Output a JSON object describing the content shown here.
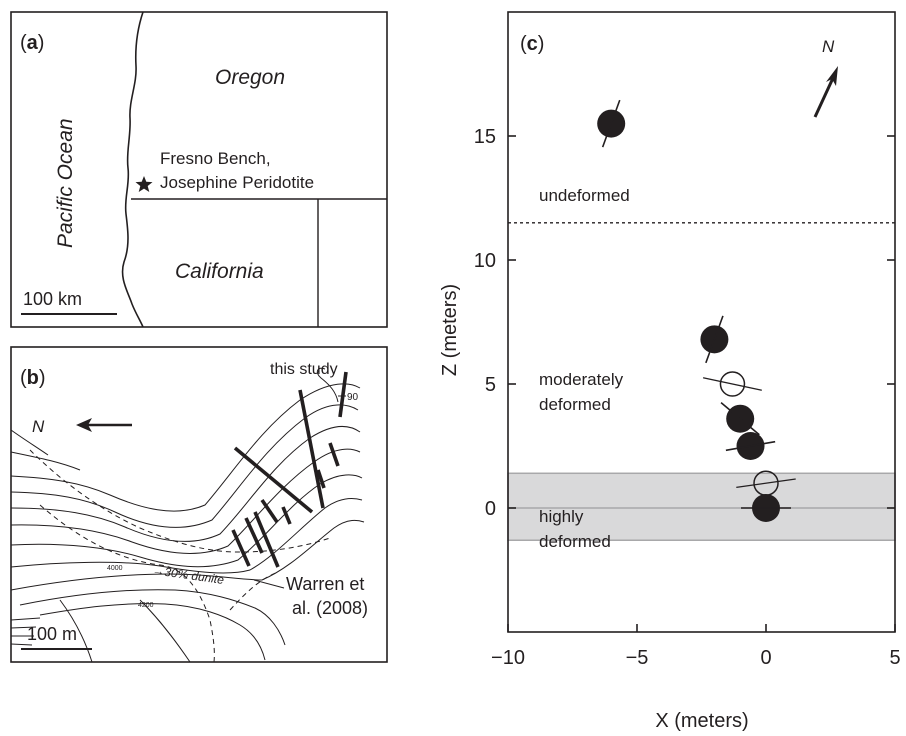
{
  "panel_a": {
    "label": "(a)",
    "label_letter": "a",
    "oregon": "Oregon",
    "california": "California",
    "ocean": "Pacific Ocean",
    "site_line1": "Fresno Bench,",
    "site_line2": "Josephine Peridotite",
    "scale": "100 km"
  },
  "panel_b": {
    "label": "(b)",
    "label_letter": "b",
    "this_study": "this study",
    "dip": "90",
    "dunite": "30% dunite",
    "contour_4000": "4000",
    "contour_4200": "4200",
    "ref_line1": "Warren et",
    "ref_line2": "al. (2008)",
    "scale": "100 m",
    "north_symbol": "N"
  },
  "panel_c": {
    "label": "(c)",
    "label_letter": "c",
    "north_symbol": "N",
    "undeformed": "undeformed",
    "moderately_line1": "moderately",
    "moderately_line2": "deformed",
    "highly_line1": "highly",
    "highly_line2": "deformed"
  },
  "chart_data": {
    "type": "scatter",
    "xlabel": "X (meters)",
    "ylabel": "Z (meters)",
    "xlim": [
      -10,
      5
    ],
    "ylim": [
      -5,
      20
    ],
    "xticks": [
      -10,
      -5,
      0,
      5
    ],
    "yticks": [
      0,
      5,
      10,
      15
    ],
    "boundary_dashed_z": 11.5,
    "highly_deformed_band": [
      -1.3,
      1.4
    ],
    "band_midline_z": 0.0,
    "points": [
      {
        "x": -6.0,
        "z": 15.5,
        "filled": true,
        "orientation_deg": -70
      },
      {
        "x": -2.0,
        "z": 6.8,
        "filled": true,
        "orientation_deg": -70
      },
      {
        "x": -1.3,
        "z": 5.0,
        "filled": false,
        "orientation_deg": 12
      },
      {
        "x": -1.0,
        "z": 3.6,
        "filled": true,
        "orientation_deg": 40
      },
      {
        "x": -0.6,
        "z": 2.5,
        "filled": true,
        "orientation_deg": -10
      },
      {
        "x": 0.0,
        "z": 1.0,
        "filled": false,
        "orientation_deg": -8
      },
      {
        "x": 0.0,
        "z": 0.0,
        "filled": true,
        "orientation_deg": 0
      }
    ]
  }
}
